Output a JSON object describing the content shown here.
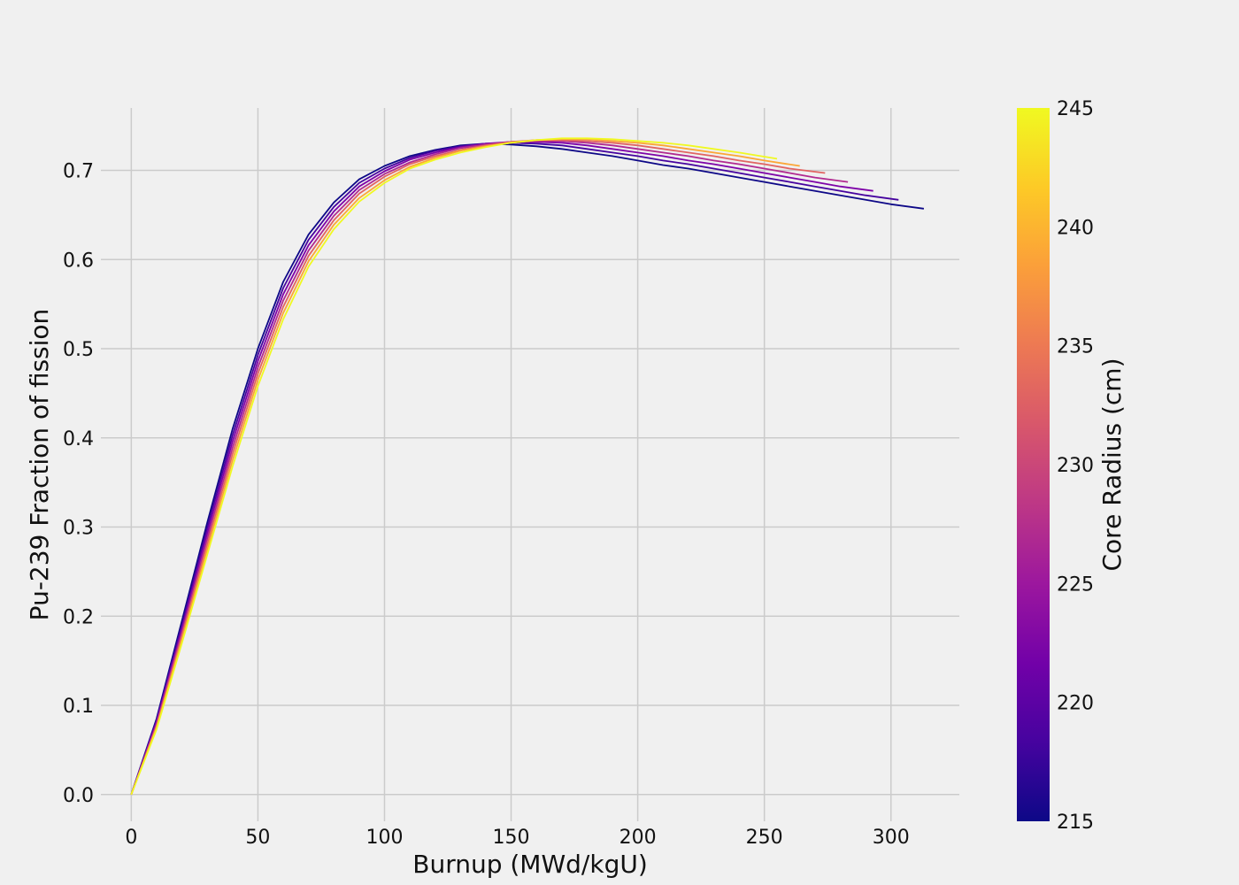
{
  "chart_data": {
    "type": "line",
    "xlabel": "Burnup (MWd/kgU)",
    "ylabel": "Pu-239 Fraction of fission",
    "xlim": [
      -12,
      327
    ],
    "ylim": [
      -0.03,
      0.77
    ],
    "xticks": [
      0,
      50,
      100,
      150,
      200,
      250,
      300
    ],
    "yticks": [
      0.0,
      0.1,
      0.2,
      0.3,
      0.4,
      0.5,
      0.6,
      0.7
    ],
    "grid": true,
    "colorbar": {
      "label": "Core Radius (cm)",
      "min": 215,
      "max": 245,
      "ticks": [
        215,
        220,
        225,
        230,
        235,
        240,
        245
      ],
      "colormap": [
        "#0d0887",
        "#46039f",
        "#7201a8",
        "#9c179e",
        "#bd3786",
        "#d8576b",
        "#ed7953",
        "#fb9f3a",
        "#fdca26",
        "#f0f921"
      ]
    },
    "series": [
      {
        "radius": 215,
        "color": "#0d0887",
        "points": [
          [
            0,
            0.0
          ],
          [
            10,
            0.085
          ],
          [
            20,
            0.195
          ],
          [
            30,
            0.305
          ],
          [
            40,
            0.41
          ],
          [
            50,
            0.5
          ],
          [
            60,
            0.575
          ],
          [
            70,
            0.628
          ],
          [
            80,
            0.664
          ],
          [
            90,
            0.69
          ],
          [
            100,
            0.705
          ],
          [
            110,
            0.716
          ],
          [
            120,
            0.723
          ],
          [
            130,
            0.728
          ],
          [
            140,
            0.73
          ],
          [
            150,
            0.729
          ],
          [
            160,
            0.727
          ],
          [
            170,
            0.724
          ],
          [
            180,
            0.72
          ],
          [
            190,
            0.716
          ],
          [
            200,
            0.711
          ],
          [
            210,
            0.706
          ],
          [
            220,
            0.702
          ],
          [
            230,
            0.697
          ],
          [
            240,
            0.692
          ],
          [
            250,
            0.687
          ],
          [
            260,
            0.682
          ],
          [
            270,
            0.677
          ],
          [
            280,
            0.672
          ],
          [
            290,
            0.667
          ],
          [
            300,
            0.662
          ],
          [
            313,
            0.657
          ]
        ]
      },
      {
        "radius": 220,
        "color": "#46039f",
        "points": [
          [
            0,
            0.0
          ],
          [
            10,
            0.083
          ],
          [
            20,
            0.19
          ],
          [
            30,
            0.299
          ],
          [
            40,
            0.403
          ],
          [
            50,
            0.493
          ],
          [
            60,
            0.568
          ],
          [
            70,
            0.622
          ],
          [
            80,
            0.659
          ],
          [
            90,
            0.686
          ],
          [
            100,
            0.702
          ],
          [
            110,
            0.714
          ],
          [
            120,
            0.722
          ],
          [
            130,
            0.727
          ],
          [
            140,
            0.73
          ],
          [
            150,
            0.731
          ],
          [
            160,
            0.73
          ],
          [
            170,
            0.728
          ],
          [
            180,
            0.724
          ],
          [
            190,
            0.72
          ],
          [
            200,
            0.716
          ],
          [
            210,
            0.711
          ],
          [
            220,
            0.707
          ],
          [
            230,
            0.702
          ],
          [
            240,
            0.697
          ],
          [
            250,
            0.692
          ],
          [
            260,
            0.687
          ],
          [
            270,
            0.682
          ],
          [
            280,
            0.677
          ],
          [
            290,
            0.672
          ],
          [
            303,
            0.667
          ]
        ]
      },
      {
        "radius": 225,
        "color": "#7e03a8",
        "points": [
          [
            0,
            0.0
          ],
          [
            10,
            0.081
          ],
          [
            20,
            0.186
          ],
          [
            30,
            0.293
          ],
          [
            40,
            0.396
          ],
          [
            50,
            0.486
          ],
          [
            60,
            0.561
          ],
          [
            70,
            0.616
          ],
          [
            80,
            0.654
          ],
          [
            90,
            0.682
          ],
          [
            100,
            0.699
          ],
          [
            110,
            0.712
          ],
          [
            120,
            0.72
          ],
          [
            130,
            0.726
          ],
          [
            140,
            0.73
          ],
          [
            150,
            0.732
          ],
          [
            160,
            0.732
          ],
          [
            170,
            0.731
          ],
          [
            180,
            0.728
          ],
          [
            190,
            0.724
          ],
          [
            200,
            0.72
          ],
          [
            210,
            0.716
          ],
          [
            220,
            0.711
          ],
          [
            230,
            0.707
          ],
          [
            240,
            0.702
          ],
          [
            250,
            0.697
          ],
          [
            260,
            0.692
          ],
          [
            270,
            0.687
          ],
          [
            280,
            0.682
          ],
          [
            293,
            0.677
          ]
        ]
      },
      {
        "radius": 230,
        "color": "#b12a90",
        "points": [
          [
            0,
            0.0
          ],
          [
            10,
            0.079
          ],
          [
            20,
            0.182
          ],
          [
            30,
            0.287
          ],
          [
            40,
            0.389
          ],
          [
            50,
            0.479
          ],
          [
            60,
            0.554
          ],
          [
            70,
            0.61
          ],
          [
            80,
            0.649
          ],
          [
            90,
            0.678
          ],
          [
            100,
            0.696
          ],
          [
            110,
            0.709
          ],
          [
            120,
            0.718
          ],
          [
            130,
            0.725
          ],
          [
            140,
            0.729
          ],
          [
            150,
            0.732
          ],
          [
            160,
            0.733
          ],
          [
            170,
            0.733
          ],
          [
            180,
            0.731
          ],
          [
            190,
            0.728
          ],
          [
            200,
            0.724
          ],
          [
            210,
            0.72
          ],
          [
            220,
            0.716
          ],
          [
            230,
            0.711
          ],
          [
            240,
            0.707
          ],
          [
            250,
            0.702
          ],
          [
            260,
            0.697
          ],
          [
            270,
            0.692
          ],
          [
            283,
            0.687
          ]
        ]
      },
      {
        "radius": 235,
        "color": "#e16462",
        "points": [
          [
            0,
            0.0
          ],
          [
            10,
            0.077
          ],
          [
            20,
            0.178
          ],
          [
            30,
            0.281
          ],
          [
            40,
            0.382
          ],
          [
            50,
            0.472
          ],
          [
            60,
            0.547
          ],
          [
            70,
            0.604
          ],
          [
            80,
            0.644
          ],
          [
            90,
            0.674
          ],
          [
            100,
            0.693
          ],
          [
            110,
            0.707
          ],
          [
            120,
            0.716
          ],
          [
            130,
            0.723
          ],
          [
            140,
            0.728
          ],
          [
            150,
            0.732
          ],
          [
            160,
            0.734
          ],
          [
            170,
            0.734
          ],
          [
            180,
            0.733
          ],
          [
            190,
            0.731
          ],
          [
            200,
            0.728
          ],
          [
            210,
            0.724
          ],
          [
            220,
            0.72
          ],
          [
            230,
            0.716
          ],
          [
            240,
            0.711
          ],
          [
            250,
            0.707
          ],
          [
            260,
            0.702
          ],
          [
            274,
            0.697
          ]
        ]
      },
      {
        "radius": 240,
        "color": "#fca636",
        "points": [
          [
            0,
            0.0
          ],
          [
            10,
            0.075
          ],
          [
            20,
            0.174
          ],
          [
            30,
            0.275
          ],
          [
            40,
            0.375
          ],
          [
            50,
            0.465
          ],
          [
            60,
            0.54
          ],
          [
            70,
            0.598
          ],
          [
            80,
            0.639
          ],
          [
            90,
            0.669
          ],
          [
            100,
            0.689
          ],
          [
            110,
            0.704
          ],
          [
            120,
            0.714
          ],
          [
            130,
            0.722
          ],
          [
            140,
            0.727
          ],
          [
            150,
            0.731
          ],
          [
            160,
            0.734
          ],
          [
            170,
            0.735
          ],
          [
            180,
            0.735
          ],
          [
            190,
            0.733
          ],
          [
            200,
            0.731
          ],
          [
            210,
            0.728
          ],
          [
            220,
            0.724
          ],
          [
            230,
            0.72
          ],
          [
            240,
            0.716
          ],
          [
            250,
            0.711
          ],
          [
            264,
            0.705
          ]
        ]
      },
      {
        "radius": 245,
        "color": "#f0f921",
        "points": [
          [
            0,
            0.0
          ],
          [
            10,
            0.073
          ],
          [
            20,
            0.17
          ],
          [
            30,
            0.269
          ],
          [
            40,
            0.368
          ],
          [
            50,
            0.458
          ],
          [
            60,
            0.533
          ],
          [
            70,
            0.592
          ],
          [
            80,
            0.634
          ],
          [
            90,
            0.665
          ],
          [
            100,
            0.686
          ],
          [
            110,
            0.702
          ],
          [
            120,
            0.712
          ],
          [
            130,
            0.72
          ],
          [
            140,
            0.726
          ],
          [
            150,
            0.731
          ],
          [
            160,
            0.734
          ],
          [
            170,
            0.736
          ],
          [
            180,
            0.736
          ],
          [
            190,
            0.735
          ],
          [
            200,
            0.733
          ],
          [
            210,
            0.731
          ],
          [
            220,
            0.728
          ],
          [
            230,
            0.724
          ],
          [
            240,
            0.72
          ],
          [
            255,
            0.713
          ]
        ]
      }
    ]
  }
}
